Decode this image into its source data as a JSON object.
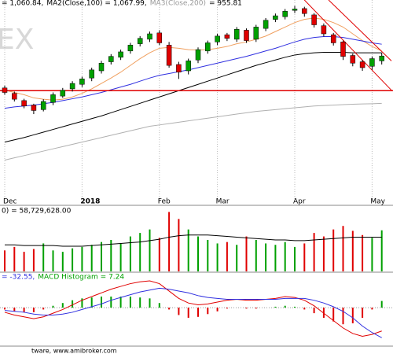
{
  "chart_data": [
    {
      "type": "candlestick",
      "header": [
        {
          "text": "= 1,060.84,",
          "color": "#000000"
        },
        {
          "text": "MA2(Close,100) = 1,067.99,",
          "color": "#000000"
        },
        {
          "text": "MA3(Close,200)",
          "color": "#9a9a9a"
        },
        {
          "text": "= 955.81",
          "color": "#000000"
        }
      ],
      "watermark": "EX",
      "categories": [
        "Dec",
        null,
        null,
        null,
        null,
        null,
        null,
        null,
        "2018",
        null,
        null,
        null,
        null,
        null,
        null,
        null,
        "Feb",
        null,
        null,
        null,
        null,
        null,
        "Mar",
        null,
        null,
        null,
        null,
        null,
        null,
        null,
        "Apr",
        null,
        null,
        null,
        null,
        null,
        null,
        null,
        "May",
        null
      ],
      "open": [
        990,
        978,
        962,
        952,
        942,
        958,
        972,
        988,
        998,
        1012,
        1028,
        1048,
        1058,
        1072,
        1088,
        1098,
        1112,
        1085,
        1042,
        1028,
        1052,
        1072,
        1092,
        1108,
        1098,
        1118,
        1098,
        1122,
        1142,
        1148,
        1162,
        1166,
        1152,
        1128,
        1108,
        1092,
        1062,
        1048,
        1038,
        1050
      ],
      "high": [
        995,
        982,
        966,
        955,
        965,
        980,
        990,
        1005,
        1015,
        1035,
        1050,
        1065,
        1075,
        1090,
        1105,
        1115,
        1118,
        1092,
        1048,
        1055,
        1080,
        1095,
        1110,
        1112,
        1125,
        1122,
        1130,
        1145,
        1155,
        1165,
        1172,
        1170,
        1156,
        1133,
        1112,
        1095,
        1066,
        1052,
        1060,
        1068
      ],
      "low": [
        975,
        960,
        945,
        932,
        938,
        952,
        968,
        982,
        992,
        1005,
        1022,
        1042,
        1052,
        1066,
        1082,
        1092,
        1085,
        1035,
        1010,
        1020,
        1045,
        1066,
        1085,
        1094,
        1092,
        1090,
        1092,
        1116,
        1136,
        1142,
        1156,
        1148,
        1124,
        1104,
        1084,
        1052,
        1038,
        1028,
        1030,
        1042
      ],
      "close": [
        980,
        965,
        950,
        940,
        960,
        975,
        985,
        1000,
        1010,
        1030,
        1045,
        1060,
        1070,
        1085,
        1100,
        1110,
        1090,
        1040,
        1025,
        1050,
        1075,
        1090,
        1105,
        1100,
        1120,
        1095,
        1125,
        1140,
        1150,
        1160,
        1165,
        1155,
        1130,
        1110,
        1090,
        1060,
        1045,
        1035,
        1055,
        1060.84
      ],
      "up_color": "#00a000",
      "down_color": "#e00000",
      "series": [
        {
          "color": "#f0a060",
          "values": [
            985,
            980,
            975,
            968,
            965,
            963,
            965,
            970,
            978,
            988,
            1000,
            1012,
            1025,
            1040,
            1055,
            1068,
            1078,
            1080,
            1078,
            1075,
            1074,
            1075,
            1078,
            1082,
            1088,
            1092,
            1098,
            1105,
            1115,
            1125,
            1135,
            1142,
            1145,
            1142,
            1135,
            1125,
            1110,
            1095,
            1082,
            1072
          ]
        },
        {
          "color": "#3030e0",
          "values": [
            945,
            948,
            950,
            952,
            955,
            958,
            962,
            966,
            970,
            975,
            980,
            986,
            992,
            998,
            1005,
            1012,
            1018,
            1022,
            1026,
            1030,
            1035,
            1040,
            1045,
            1050,
            1055,
            1060,
            1066,
            1072,
            1078,
            1085,
            1092,
            1098,
            1102,
            1104,
            1104,
            1102,
            1098,
            1094,
            1090,
            1087
          ]
        },
        {
          "color": "#000000",
          "values": [
            870,
            875,
            880,
            886,
            892,
            898,
            904,
            910,
            916,
            922,
            928,
            935,
            942,
            949,
            956,
            963,
            970,
            977,
            984,
            991,
            998,
            1005,
            1012,
            1019,
            1026,
            1033,
            1040,
            1046,
            1052,
            1058,
            1063,
            1066,
            1068,
            1069,
            1069,
            1069,
            1068,
            1068,
            1068,
            1067.99
          ]
        },
        {
          "color": "#b0b0b0",
          "values": [
            830,
            835,
            840,
            845,
            850,
            855,
            860,
            865,
            870,
            875,
            880,
            885,
            890,
            895,
            900,
            905,
            908,
            911,
            914,
            917,
            920,
            923,
            926,
            929,
            932,
            935,
            938,
            940,
            942,
            944,
            946,
            948,
            950,
            951,
            952,
            953,
            954,
            954.5,
            955,
            955.81
          ]
        }
      ],
      "hline": {
        "value": 984,
        "color": "#e00000"
      },
      "trendlines": [
        {
          "color": "#e00000",
          "points": [
            [
              31,
              1185
            ],
            [
              40,
              985
            ]
          ]
        },
        {
          "color": "#e00000",
          "points": [
            [
              33.5,
              1185
            ],
            [
              40,
              1050
            ]
          ]
        }
      ],
      "ylim": [
        735,
        1185
      ]
    },
    {
      "type": "volume",
      "header": [
        {
          "text": "0) = 58,729,628.00",
          "color": "#000000"
        }
      ],
      "values": [
        30,
        35,
        28,
        32,
        40,
        30,
        28,
        33,
        35,
        38,
        42,
        45,
        40,
        50,
        55,
        60,
        48,
        85,
        75,
        60,
        50,
        45,
        40,
        42,
        38,
        50,
        45,
        40,
        38,
        42,
        35,
        40,
        55,
        50,
        60,
        65,
        58,
        52,
        48,
        58.73
      ],
      "ma": {
        "color": "#000000",
        "values": [
          38,
          38,
          37,
          37,
          37,
          37,
          36,
          36,
          36,
          37,
          38,
          39,
          40,
          41,
          42,
          44,
          46,
          49,
          51,
          52,
          52,
          52,
          51,
          50,
          49,
          48,
          47,
          46,
          45,
          45,
          44,
          44,
          45,
          46,
          47,
          48,
          49,
          49,
          49,
          49
        ]
      },
      "ylim": [
        0,
        90
      ]
    },
    {
      "type": "macd",
      "header": [
        {
          "text": "= -32.55,",
          "color": "#3030e0"
        },
        {
          "text": "MACD Histogram = 7.24",
          "color": "#00a000"
        }
      ],
      "macd": {
        "color": "#e00000",
        "values": [
          -5,
          -8,
          -10,
          -12,
          -10,
          -6,
          -2,
          3,
          8,
          12,
          16,
          20,
          23,
          26,
          28,
          29,
          26,
          18,
          10,
          5,
          3,
          4,
          6,
          8,
          9,
          8,
          8,
          9,
          10,
          12,
          11,
          8,
          2,
          -6,
          -14,
          -22,
          -28,
          -31,
          -29,
          -25.31
        ]
      },
      "signal": {
        "color": "#3030e0",
        "values": [
          -3,
          -4,
          -5,
          -7,
          -8,
          -8,
          -7,
          -5,
          -2,
          1,
          4,
          8,
          11,
          14,
          17,
          19,
          21,
          20,
          18,
          16,
          13,
          11,
          10,
          9,
          9,
          9,
          9,
          9,
          9,
          10,
          10,
          10,
          8,
          5,
          1,
          -4,
          -11,
          -20,
          -27,
          -32.55
        ]
      },
      "histogram": {
        "up_color": "#00a000",
        "down_color": "#e00000",
        "values": [
          -2,
          -4,
          -5,
          -5,
          -2,
          2,
          5,
          8,
          10,
          11,
          12,
          12,
          12,
          12,
          11,
          10,
          5,
          -2,
          -8,
          -11,
          -10,
          -7,
          -4,
          -1,
          0,
          -1,
          -1,
          0,
          1,
          2,
          1,
          -2,
          -6,
          -11,
          -15,
          -18,
          -17,
          -11,
          -2,
          7.24
        ]
      },
      "ylim": [
        -40,
        35
      ]
    }
  ],
  "footer": "tware, www.amibroker.com"
}
